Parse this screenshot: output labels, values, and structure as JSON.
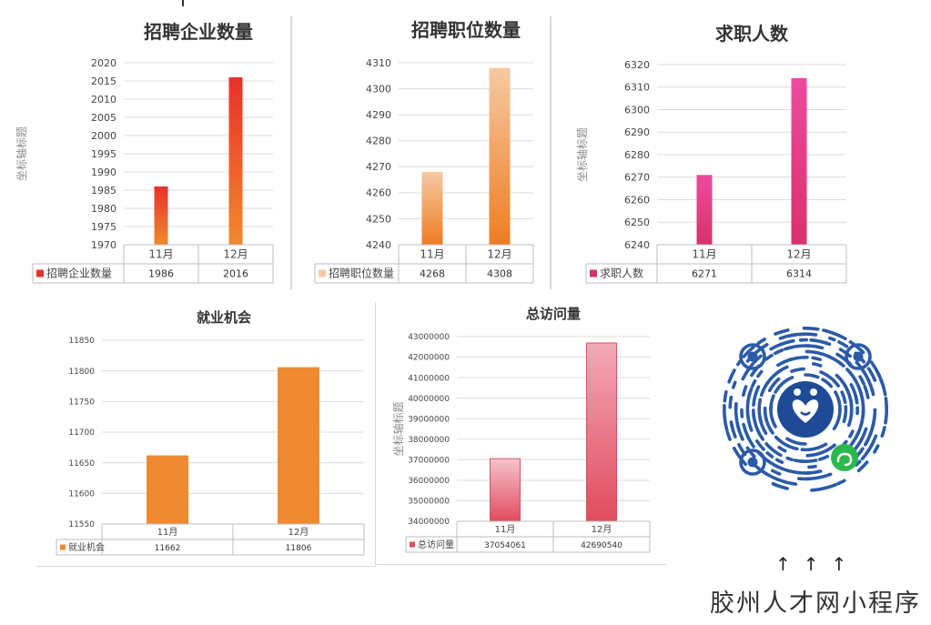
{
  "chart_data": [
    {
      "type": "bar",
      "title": "招聘企业数量",
      "ylabel": "坐标轴标题",
      "categories": [
        "11月",
        "12月"
      ],
      "series": [
        {
          "name": "招聘企业数量",
          "values": [
            1986,
            2016
          ]
        }
      ],
      "ylim": [
        1970,
        2020
      ],
      "yticks": [
        1970,
        1975,
        1980,
        1985,
        1990,
        1995,
        2000,
        2005,
        2010,
        2015,
        2020
      ],
      "table_labels": [
        "1986",
        "2016"
      ],
      "grid": true,
      "legend": "data-table",
      "colors": [
        "#e8312b",
        "#f08a2c"
      ]
    },
    {
      "type": "bar",
      "title": "招聘职位数量",
      "ylabel": "",
      "categories": [
        "11月",
        "12月"
      ],
      "series": [
        {
          "name": "招聘职位数量",
          "values": [
            4268,
            4308
          ]
        }
      ],
      "ylim": [
        4240,
        4310
      ],
      "yticks": [
        4240,
        4250,
        4260,
        4270,
        4280,
        4290,
        4300,
        4310
      ],
      "table_labels": [
        "4268",
        "4308"
      ],
      "grid": true,
      "legend": "data-table",
      "colors": [
        "#f6c9a3",
        "#ee7d22"
      ]
    },
    {
      "type": "bar",
      "title": "求职人数",
      "ylabel": "坐标轴标题",
      "categories": [
        "11月",
        "12月"
      ],
      "series": [
        {
          "name": "求职人数",
          "values": [
            6271,
            6314
          ]
        }
      ],
      "ylim": [
        6240,
        6320
      ],
      "yticks": [
        6240,
        6250,
        6260,
        6270,
        6280,
        6290,
        6300,
        6310,
        6320
      ],
      "table_labels": [
        "6271",
        "6314"
      ],
      "grid": true,
      "legend": "data-table",
      "colors": [
        "#ee4a9e",
        "#d9316a"
      ]
    },
    {
      "type": "bar",
      "title": "就业机会",
      "ylabel": "",
      "categories": [
        "11月",
        "12月"
      ],
      "series": [
        {
          "name": "就业机会",
          "values": [
            11662,
            11806
          ]
        }
      ],
      "ylim": [
        11550,
        11850
      ],
      "yticks": [
        11550,
        11600,
        11650,
        11700,
        11750,
        11800,
        11850
      ],
      "table_labels": [
        "11662",
        "11806"
      ],
      "grid": true,
      "legend": "data-table",
      "colors": [
        "#ef8a33",
        "#ef8a33"
      ]
    },
    {
      "type": "bar",
      "title": "总访问量",
      "ylabel": "坐标轴标题",
      "categories": [
        "11月",
        "12月"
      ],
      "series": [
        {
          "name": "总访问量",
          "values": [
            37054061,
            42690540
          ]
        }
      ],
      "ylim": [
        34000000,
        43000000
      ],
      "yticks": [
        34000000,
        35000000,
        36000000,
        37000000,
        38000000,
        39000000,
        40000000,
        41000000,
        42000000,
        43000000
      ],
      "table_labels": [
        "37054061",
        "42690540"
      ],
      "grid": true,
      "legend": "data-table",
      "colors": [
        "#f4b8c4",
        "#e14b5e"
      ]
    }
  ],
  "promo": {
    "arrows": "↑↑↑",
    "text": "胶州人才网小程序"
  },
  "qr": {
    "icon": "mini-program-qr-code",
    "accent": "#2b5aa8",
    "badge_color": "#2db84d"
  }
}
